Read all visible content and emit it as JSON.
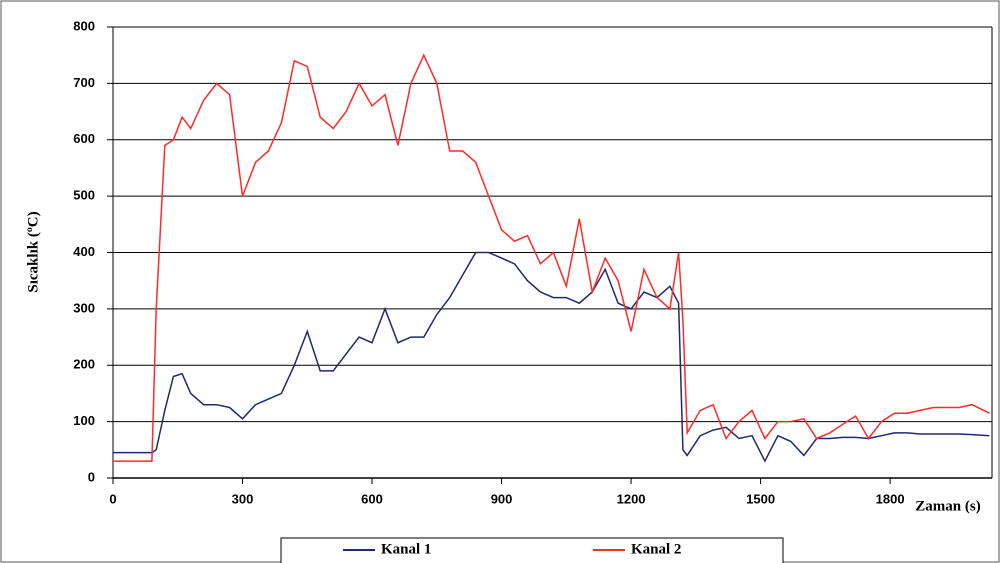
{
  "chart_data": {
    "type": "line",
    "xlabel": "Zaman (s)",
    "ylabel": "Sıcaklık  (ºC)",
    "x": [
      0,
      30,
      60,
      90,
      100,
      120,
      140,
      160,
      180,
      210,
      240,
      270,
      300,
      330,
      360,
      390,
      420,
      450,
      480,
      510,
      540,
      570,
      600,
      630,
      660,
      690,
      720,
      750,
      780,
      810,
      840,
      870,
      900,
      930,
      960,
      990,
      1020,
      1050,
      1080,
      1110,
      1140,
      1170,
      1200,
      1230,
      1260,
      1290,
      1310,
      1320,
      1330,
      1360,
      1390,
      1420,
      1450,
      1480,
      1510,
      1540,
      1570,
      1600,
      1630,
      1660,
      1690,
      1720,
      1750,
      1780,
      1810,
      1840,
      1870,
      1900,
      1930,
      1960,
      1990,
      2030
    ],
    "series": [
      {
        "name": "Kanal 1",
        "color": "#1f2a6e",
        "values": [
          45,
          45,
          45,
          45,
          50,
          120,
          180,
          185,
          150,
          130,
          130,
          125,
          105,
          130,
          140,
          150,
          200,
          260,
          190,
          190,
          220,
          250,
          240,
          300,
          240,
          250,
          250,
          290,
          320,
          360,
          400,
          400,
          390,
          380,
          350,
          330,
          320,
          320,
          310,
          330,
          370,
          310,
          300,
          330,
          320,
          340,
          310,
          50,
          40,
          75,
          85,
          90,
          70,
          75,
          30,
          75,
          65,
          40,
          70,
          70,
          72,
          72,
          70,
          75,
          80,
          80,
          78,
          78,
          78,
          78,
          77,
          75
        ]
      },
      {
        "name": "Kanal 2",
        "color": "#ff2a2a",
        "values": [
          30,
          30,
          30,
          30,
          300,
          590,
          600,
          640,
          620,
          670,
          700,
          680,
          500,
          560,
          580,
          630,
          740,
          730,
          640,
          620,
          650,
          700,
          660,
          680,
          590,
          700,
          750,
          700,
          580,
          580,
          560,
          500,
          440,
          420,
          430,
          380,
          400,
          340,
          460,
          330,
          390,
          350,
          260,
          370,
          320,
          300,
          400,
          280,
          80,
          120,
          130,
          70,
          100,
          120,
          70,
          100,
          100,
          105,
          70,
          80,
          95,
          110,
          70,
          100,
          115,
          115,
          120,
          125,
          125,
          125,
          130,
          115
        ]
      }
    ],
    "xlim": [
      0,
      2036
    ],
    "xticks": [
      0,
      300,
      600,
      900,
      1200,
      1500,
      1800
    ],
    "ylim": [
      0,
      800
    ],
    "yticks": [
      0,
      100,
      200,
      300,
      400,
      500,
      600,
      700,
      800
    ],
    "grid": true,
    "legend": "bottom"
  }
}
